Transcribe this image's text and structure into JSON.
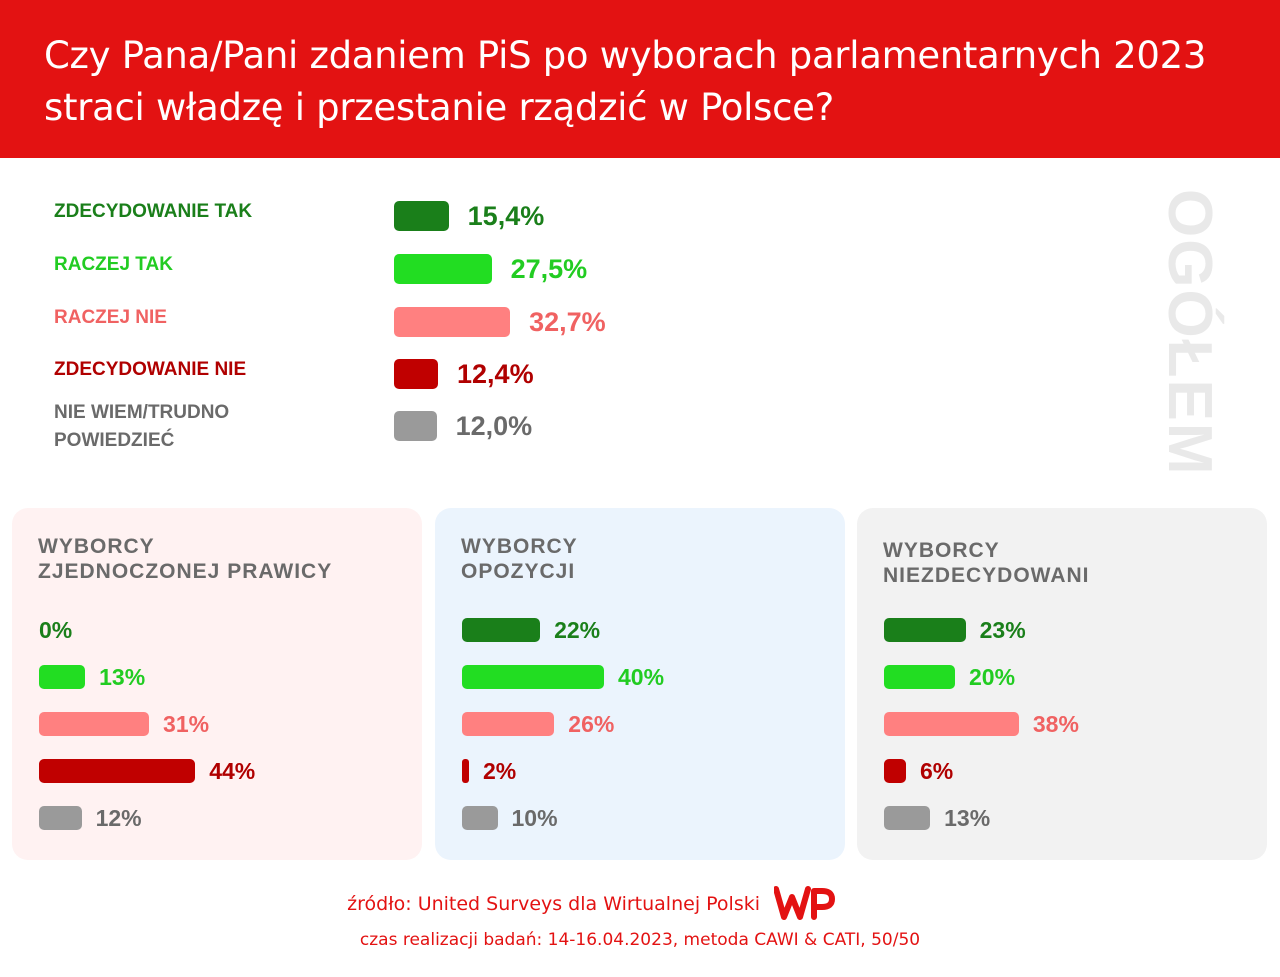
{
  "header": {
    "title_line1": "Czy Pana/Pani zdaniem PiS po wyborach parlamentarnych 2023",
    "title_line2": "straci władzę i przestanie rządzić w Polsce?"
  },
  "side_label": "OGÓŁEM",
  "colors": {
    "header_bg": "#e31212",
    "zdecydowanie_tak": "#1a7f1a",
    "raczej_tak": "#22dd22",
    "raczej_nie": "#ff8080",
    "zdecydowanie_nie": "#c00000",
    "nie_wiem": "#9a9a9a",
    "panel_right": "#fff2f2",
    "panel_opposition": "#ebf4fd",
    "panel_undecided": "#f2f2f2"
  },
  "chart_data": [
    {
      "type": "bar",
      "orientation": "horizontal",
      "categories": [
        "ZDECYDOWANIE TAK",
        "RACZEJ TAK",
        "RACZEJ NIE",
        "ZDECYDOWANIE NIE",
        "NIE WIEM/TRUDNO POWIEDZIEĆ"
      ],
      "category_lines": [
        [
          "ZDECYDOWANIE TAK"
        ],
        [
          "RACZEJ TAK"
        ],
        [
          "RACZEJ NIE"
        ],
        [
          "ZDECYDOWANIE NIE"
        ],
        [
          "NIE WIEM/TRUDNO",
          "POWIEDZIEĆ"
        ]
      ],
      "values": [
        15.4,
        27.5,
        32.7,
        12.4,
        12.0
      ],
      "value_labels": [
        "15,4%",
        "27,5%",
        "32,7%",
        "12,4%",
        "12,0%"
      ],
      "colors": [
        "#1a7f1a",
        "#22dd22",
        "#ff8080",
        "#c00000",
        "#9a9a9a"
      ],
      "label_colors": [
        "#1a7f1a",
        "#22cc22",
        "#f06262",
        "#b00000",
        "#6a6a6a"
      ],
      "unit": "%",
      "grid": false
    },
    {
      "type": "bar",
      "orientation": "horizontal",
      "title_lines": [
        "WYBORCY",
        "ZJEDNOCZONEJ PRAWICY"
      ],
      "values": [
        0,
        13,
        31,
        44,
        12
      ],
      "value_labels": [
        "0%",
        "13%",
        "31%",
        "44%",
        "12%"
      ],
      "unit": "%"
    },
    {
      "type": "bar",
      "orientation": "horizontal",
      "title_lines": [
        "WYBORCY",
        "OPOZYCJI"
      ],
      "values": [
        22,
        40,
        26,
        2,
        10
      ],
      "value_labels": [
        "22%",
        "40%",
        "26%",
        "2%",
        "10%"
      ],
      "unit": "%"
    },
    {
      "type": "bar",
      "orientation": "horizontal",
      "title_lines": [
        "WYBORCY",
        "NIEZDECYDOWANI"
      ],
      "values": [
        23,
        20,
        38,
        6,
        13
      ],
      "value_labels": [
        "23%",
        "20%",
        "38%",
        "6%",
        "13%"
      ],
      "unit": "%"
    }
  ],
  "footer": {
    "source": "źródło: United Surveys dla Wirtualnej Polski",
    "logo_text": "WP",
    "method": "czas realizacji badań: 14-16.04.2023, metoda CAWI & CATI, 50/50"
  }
}
